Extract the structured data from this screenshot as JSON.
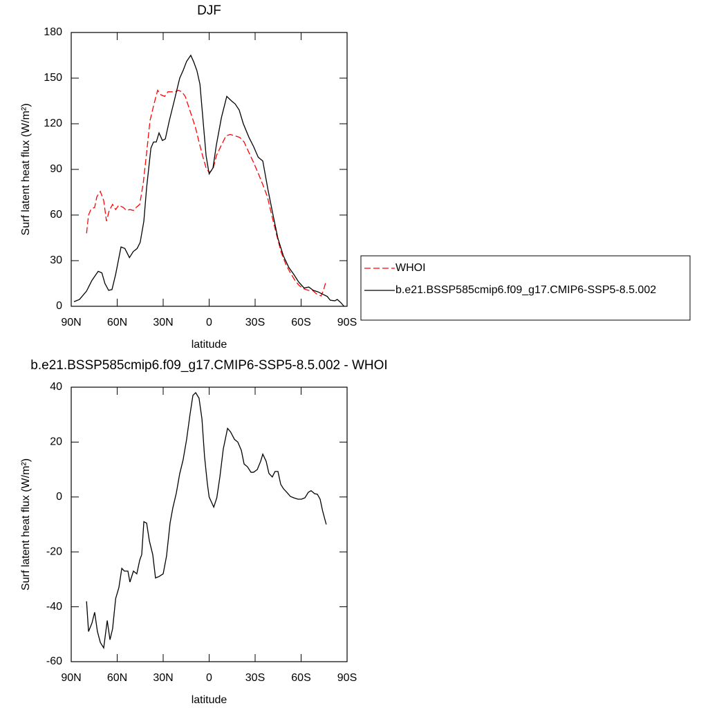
{
  "chart_data": [
    {
      "type": "line",
      "title": "DJF",
      "xlabel": "latitude",
      "ylabel": "Surf latent heat flux (W/m²)",
      "xlim": [
        90,
        -90
      ],
      "xticks": [
        {
          "value": 90,
          "label": "90N"
        },
        {
          "value": 60,
          "label": "60N"
        },
        {
          "value": 30,
          "label": "30N"
        },
        0,
        {
          "value": -30,
          "label": "30S"
        },
        {
          "value": -60,
          "label": "60S"
        },
        {
          "value": -90,
          "label": "90S"
        }
      ],
      "ylim": [
        0,
        180
      ],
      "yticks": [
        0,
        30,
        60,
        90,
        120,
        150,
        180
      ],
      "legend": "right",
      "series": [
        {
          "name": "WHOI",
          "color": "#ff0000",
          "line_style": "dashed",
          "x": [
            80,
            78.7,
            77,
            74.7,
            73.3,
            71,
            68.8,
            67,
            65.2,
            63,
            61,
            59,
            56,
            54,
            51.7,
            49.4,
            47.6,
            45.3,
            43,
            40.8,
            38.6,
            36,
            33.6,
            31.4,
            29,
            26.9,
            24.6,
            22.3,
            20,
            17.8,
            15.6,
            13.3,
            11,
            8.8,
            6.6,
            4.3,
            2,
            0,
            -2.5,
            -4.7,
            -8,
            -11,
            -13.7,
            -17,
            -20,
            -22.8,
            -26,
            -29,
            -31.8,
            -35,
            -38,
            -40.8,
            -44,
            -47,
            -50.3,
            -53,
            -56,
            -58.8,
            -62,
            -64.7,
            -67.4,
            -70,
            -73,
            -74.6,
            -76.4
          ],
          "values": [
            48,
            60,
            64,
            65,
            72,
            75.5,
            69.5,
            56,
            63,
            67,
            63.6,
            66.4,
            65,
            63,
            63.6,
            63,
            65,
            67,
            81,
            101,
            122,
            133,
            142,
            139,
            138,
            141,
            141,
            141,
            142,
            141,
            138,
            131,
            124,
            117,
            108,
            99,
            91,
            88,
            90,
            99,
            106,
            112,
            113,
            112,
            111,
            108,
            101,
            94.5,
            88,
            80,
            72,
            60,
            47,
            35.5,
            27,
            22,
            17,
            13.6,
            11.4,
            10.5,
            10.5,
            8.2,
            6.8,
            10.5,
            17
          ]
        },
        {
          "name": "b.e21.BSSP585cmip6.f09_g17.CMIP6-SSP5-8.5.002",
          "color": "#000000",
          "line_style": "solid",
          "x": [
            88.2,
            84.6,
            80,
            76.5,
            72.4,
            70,
            68,
            65.6,
            63.4,
            61,
            57.5,
            55,
            52,
            49.5,
            47,
            45,
            42.6,
            40.8,
            38,
            36.3,
            34.5,
            32.7,
            30.5,
            28.6,
            26,
            22.8,
            19.2,
            17,
            14.7,
            12,
            10.2,
            8,
            6,
            4.3,
            2,
            0,
            -2.5,
            -4.7,
            -8,
            -11.5,
            -14.6,
            -17,
            -19.6,
            -22.3,
            -26,
            -29,
            -32,
            -35,
            -38.5,
            -41.7,
            -44.9,
            -48.5,
            -52,
            -55.2,
            -58.4,
            -62,
            -65,
            -67.9,
            -71,
            -74,
            -77,
            -79,
            -82,
            -83.6,
            -86,
            -88
          ],
          "values": [
            3,
            4.5,
            10,
            17,
            23,
            22,
            15,
            10.5,
            11,
            21,
            39,
            38,
            32,
            36,
            38,
            42,
            56,
            78,
            104,
            108,
            108,
            114,
            109,
            110,
            122,
            135,
            150,
            155,
            161,
            165,
            161,
            155,
            146,
            126,
            99,
            87,
            91,
            106,
            124,
            138,
            135,
            133,
            129,
            120,
            111,
            105,
            98,
            95.5,
            76,
            60,
            44.5,
            33,
            25.5,
            21,
            16,
            12,
            12.7,
            10.5,
            9.5,
            8,
            6.5,
            4,
            3.6,
            4.5,
            2.3,
            0
          ]
        }
      ]
    },
    {
      "type": "line",
      "title": "b.e21.BSSP585cmip6.f09_g17.CMIP6-SSP5-8.5.002 - WHOI",
      "xlabel": "latitude",
      "ylabel": "Surf latent heat flux (W/m²)",
      "xlim": [
        90,
        -90
      ],
      "xticks": [
        {
          "value": 90,
          "label": "90N"
        },
        {
          "value": 60,
          "label": "60N"
        },
        {
          "value": 30,
          "label": "30N"
        },
        0,
        {
          "value": -30,
          "label": "30S"
        },
        {
          "value": -60,
          "label": "60S"
        },
        {
          "value": -90,
          "label": "90S"
        }
      ],
      "ylim": [
        -60,
        40
      ],
      "yticks": [
        -60,
        -40,
        -20,
        0,
        20,
        40
      ],
      "series": [
        {
          "color": "#000000",
          "line_style": "solid",
          "x": [
            80,
            78.7,
            76.5,
            74.7,
            72.9,
            71,
            68.8,
            66.5,
            64.7,
            63,
            61,
            58.9,
            57,
            55.3,
            53,
            51.7,
            49.4,
            47.2,
            45.3,
            44,
            42.6,
            40.8,
            39,
            36.8,
            35,
            32.8,
            30,
            27.8,
            25.5,
            23.7,
            21.4,
            19.2,
            17,
            14.7,
            12.5,
            10.6,
            8.8,
            6.6,
            4.7,
            3,
            1.2,
            0,
            -3,
            -5,
            -7,
            -9.2,
            -12,
            -14,
            -16.5,
            -18.7,
            -21,
            -22.8,
            -25,
            -27.3,
            -29,
            -31.4,
            -33.6,
            -35,
            -37.2,
            -39,
            -41.2,
            -43,
            -44.9,
            -46.7,
            -48.5,
            -50.7,
            -53,
            -55.2,
            -58,
            -60.2,
            -62.5,
            -64.7,
            -66.5,
            -68.8,
            -70.6,
            -72.4,
            -74,
            -76.4
          ],
          "values": [
            -38,
            -49,
            -46,
            -42,
            -49,
            -53,
            -55,
            -45,
            -52,
            -48,
            -37,
            -33,
            -26,
            -27,
            -27,
            -31,
            -27,
            -28,
            -23,
            -21,
            -9,
            -9.5,
            -16,
            -21,
            -29.5,
            -29,
            -28,
            -21.5,
            -9.5,
            -4,
            1.5,
            8.5,
            13.5,
            21,
            30,
            37,
            38,
            36,
            28.5,
            14.7,
            5,
            0,
            -3.7,
            -0.3,
            7.3,
            17.4,
            25,
            23.7,
            21,
            20,
            17,
            12,
            11,
            9,
            9,
            10,
            13,
            15.6,
            13,
            8.6,
            7.3,
            9.3,
            9.3,
            4.6,
            3,
            1.7,
            0.2,
            -0.3,
            -0.8,
            -0.8,
            -0.3,
            1.7,
            2.3,
            1.2,
            1,
            -0.8,
            -5,
            -10
          ]
        }
      ]
    }
  ]
}
